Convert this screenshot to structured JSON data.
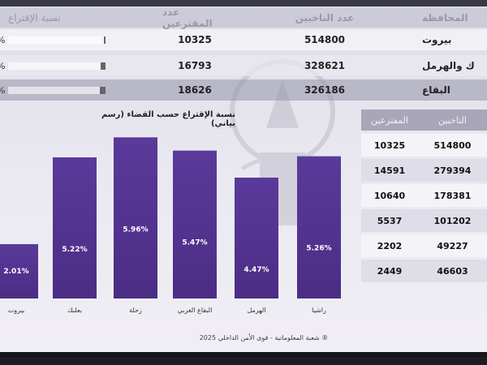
{
  "headers": {
    "governorate": "المحافظة",
    "voters": "عدد الناخبين",
    "registered": "عدد المقترعين",
    "turnout": "نسبة الإقتراع"
  },
  "top_rows": [
    {
      "name": "بيروت",
      "voters": "514800",
      "registered": "10325",
      "pct_text": "%",
      "turnout_fraction": 0.02
    },
    {
      "name": "ك والهرمل",
      "voters": "328621",
      "registered": "16793",
      "pct_text": "%",
      "turnout_fraction": 0.05
    },
    {
      "name": "البقاع",
      "voters": "326186",
      "registered": "18626",
      "pct_text": "%",
      "turnout_fraction": 0.057
    }
  ],
  "chart_data": {
    "type": "bar",
    "title": "نسبة الإقتراع حسب القضاء (رسم بياني)",
    "categories": [
      "بيروت",
      "بعلبك",
      "زحلة",
      "البقاع الغربي",
      "الهرمل",
      "راشيا"
    ],
    "values": [
      2.01,
      5.22,
      5.96,
      5.47,
      4.47,
      5.26
    ],
    "labels": [
      "2.01%",
      "5.22%",
      "5.96%",
      "5.47%",
      "4.47%",
      "5.26%"
    ],
    "ylim": [
      0,
      6
    ],
    "bar_color": "#4b2d86",
    "grid": false
  },
  "side_table": {
    "headers": {
      "voters": "الناخبين",
      "registered": "المقترعين"
    },
    "rows": [
      {
        "voters": "514800",
        "registered": "10325"
      },
      {
        "voters": "279394",
        "registered": "14591"
      },
      {
        "voters": "178381",
        "registered": "10640"
      },
      {
        "voters": "101202",
        "registered": "5537"
      },
      {
        "voters": "49227",
        "registered": "2202"
      },
      {
        "voters": "46603",
        "registered": "2449"
      }
    ]
  },
  "footer": "® شعبة المعلوماتية - قوى الأمن الداخلي 2025",
  "colors": {
    "bar": "#4b2d86",
    "bar_top": "#5a3a9a",
    "label": "#ffffff"
  }
}
